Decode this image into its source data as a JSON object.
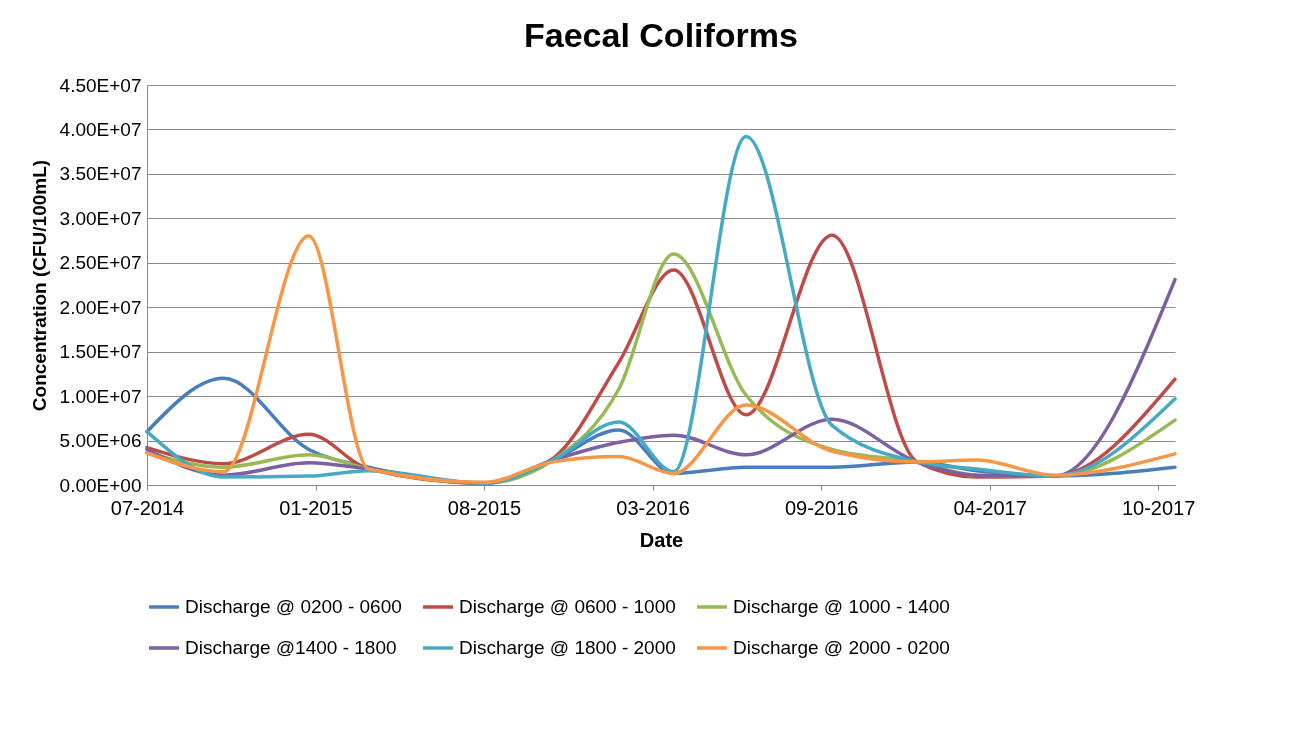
{
  "chart_data": {
    "type": "line",
    "title": "Faecal Coliforms",
    "xlabel": "Date",
    "ylabel": "Concentration (CFU/100mL)",
    "x": [
      "2014-07-15",
      "2014-10-14",
      "2015-01-23",
      "2015-04-04",
      "2015-08-19",
      "2015-11-09",
      "2016-01-26",
      "2016-03-31",
      "2016-06-25",
      "2016-10-05",
      "2017-01-14",
      "2017-03-26",
      "2017-06-26",
      "2017-11-16"
    ],
    "series": [
      {
        "name": "Discharge @ 0200 - 0600",
        "color": "#4a7ebb",
        "values": [
          6000000,
          12000000,
          4000000,
          2000000,
          200000,
          2800000,
          6200000,
          1300000,
          2000000,
          2000000,
          2600000,
          1600000,
          1000000,
          2000000
        ]
      },
      {
        "name": "Discharge @ 0600 - 1000",
        "color": "#be4b48",
        "values": [
          4200000,
          2400000,
          5700000,
          1800000,
          200000,
          3000000,
          13800000,
          24200000,
          7900000,
          28100000,
          2600000,
          900000,
          1000000,
          11900000
        ]
      },
      {
        "name": "Discharge @ 1000 - 1400",
        "color": "#98b954",
        "values": [
          3700000,
          2000000,
          3400000,
          1800000,
          200000,
          2800000,
          10800000,
          26000000,
          10100000,
          4000000,
          2600000,
          1100000,
          1000000,
          7300000
        ]
      },
      {
        "name": "Discharge @1400 - 1800",
        "color": "#7d60a0",
        "values": [
          4000000,
          1100000,
          2500000,
          1800000,
          200000,
          2800000,
          4800000,
          5600000,
          3400000,
          7400000,
          2600000,
          1100000,
          1000000,
          23100000
        ]
      },
      {
        "name": "Discharge @ 1800 - 2000",
        "color": "#46aac5",
        "values": [
          6000000,
          900000,
          1000000,
          1600000,
          200000,
          2800000,
          7100000,
          1500000,
          39200000,
          6700000,
          2600000,
          1800000,
          1000000,
          9700000
        ]
      },
      {
        "name": "Discharge @ 2000 - 0200",
        "color": "#f79646",
        "values": [
          3600000,
          1500000,
          28000000,
          1800000,
          300000,
          2600000,
          3200000,
          1300000,
          9000000,
          3800000,
          2600000,
          2800000,
          1100000,
          3500000
        ]
      }
    ],
    "xlim": [
      "2014-07-15",
      "2017-11-16"
    ],
    "xticks": [
      {
        "value": "2014-07-15",
        "label": "07-2014"
      },
      {
        "value": "2015-01-31",
        "label": "01-2015"
      },
      {
        "value": "2015-08-19",
        "label": "08-2015"
      },
      {
        "value": "2016-03-06",
        "label": "03-2016"
      },
      {
        "value": "2016-09-22",
        "label": "09-2016"
      },
      {
        "value": "2017-04-10",
        "label": "04-2017"
      },
      {
        "value": "2017-10-27",
        "label": "10-2017"
      }
    ],
    "ylim": [
      0,
      45000000
    ],
    "yticks": [
      {
        "value": 0,
        "label": "0.00E+00"
      },
      {
        "value": 5000000,
        "label": "5.00E+06"
      },
      {
        "value": 10000000,
        "label": "1.00E+07"
      },
      {
        "value": 15000000,
        "label": "1.50E+07"
      },
      {
        "value": 20000000,
        "label": "2.00E+07"
      },
      {
        "value": 25000000,
        "label": "2.50E+07"
      },
      {
        "value": 30000000,
        "label": "3.00E+07"
      },
      {
        "value": 35000000,
        "label": "3.50E+07"
      },
      {
        "value": 40000000,
        "label": "4.00E+07"
      },
      {
        "value": 45000000,
        "label": "4.50E+07"
      }
    ],
    "grid": "y",
    "legend": "bottom",
    "marker": "none",
    "line_style": "solid"
  }
}
